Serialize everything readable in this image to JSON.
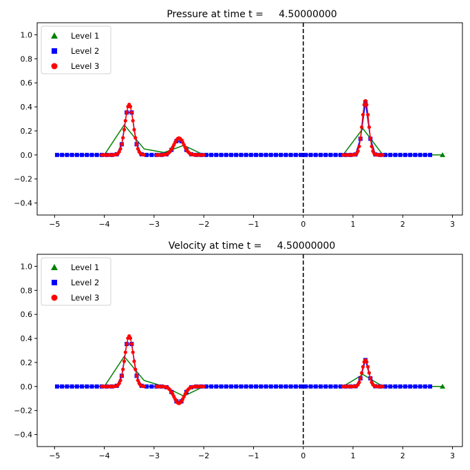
{
  "chart_data": [
    {
      "type": "line",
      "title": "Pressure at time t =     4.50000000",
      "xlim": [
        -5.35,
        3.2
      ],
      "ylim": [
        -0.5,
        1.1
      ],
      "xticks": [
        -5,
        -4,
        -3,
        -2,
        -1,
        0,
        1,
        2,
        3
      ],
      "yticks": [
        -0.4,
        -0.2,
        0.0,
        0.2,
        0.4,
        0.6,
        0.8,
        1.0
      ],
      "xtick_labels": [
        "−5",
        "−4",
        "−3",
        "−2",
        "−1",
        "0",
        "1",
        "2",
        "3"
      ],
      "ytick_labels": [
        "−0.4",
        "−0.2",
        "0.0",
        "0.2",
        "0.4",
        "0.6",
        "0.8",
        "1.0"
      ],
      "vline_x": 0,
      "legend": {
        "location": "top-left",
        "entries": [
          {
            "label": "Level 1",
            "marker": "triangle",
            "color": "#008000"
          },
          {
            "label": "Level 2",
            "marker": "square",
            "color": "#0000ff"
          },
          {
            "label": "Level 3",
            "marker": "circle",
            "color": "#ff0000"
          }
        ]
      },
      "series": [
        {
          "name": "Level 1",
          "color": "#008000",
          "x": [
            -4.0,
            -3.6,
            -3.2,
            -2.8,
            -2.4,
            -2.0,
            0.8,
            1.2,
            1.6,
            2.0,
            2.4,
            2.8
          ],
          "y": [
            0.0,
            0.25,
            0.05,
            0.02,
            0.08,
            0.0,
            0.0,
            0.22,
            0.0,
            0.0,
            0.0,
            0.0
          ]
        },
        {
          "name": "Level 2",
          "color": "#0000ff",
          "x_range": [
            -4.95,
            2.55
          ],
          "dx": 0.1,
          "bumps": [
            {
              "center": -3.5,
              "height": 0.42,
              "width": 0.085
            },
            {
              "center": -2.5,
              "height": 0.13,
              "width": 0.1
            },
            {
              "center": 1.25,
              "height": 0.44,
              "width": 0.065
            }
          ]
        },
        {
          "name": "Level 3",
          "color": "#ff0000",
          "segments": [
            [
              -4.05,
              -3.2
            ],
            [
              -2.95,
              -2.0
            ],
            [
              0.8,
              1.6
            ]
          ],
          "dx": 0.025,
          "bumps": [
            {
              "center": -3.5,
              "height": 0.42,
              "width": 0.085
            },
            {
              "center": -2.5,
              "height": 0.14,
              "width": 0.1
            },
            {
              "center": 1.25,
              "height": 0.45,
              "width": 0.065
            }
          ]
        }
      ]
    },
    {
      "type": "line",
      "title": "Velocity at time t =     4.50000000",
      "xlim": [
        -5.35,
        3.2
      ],
      "ylim": [
        -0.5,
        1.1
      ],
      "xticks": [
        -5,
        -4,
        -3,
        -2,
        -1,
        0,
        1,
        2,
        3
      ],
      "yticks": [
        -0.4,
        -0.2,
        0.0,
        0.2,
        0.4,
        0.6,
        0.8,
        1.0
      ],
      "xtick_labels": [
        "−5",
        "−4",
        "−3",
        "−2",
        "−1",
        "0",
        "1",
        "2",
        "3"
      ],
      "ytick_labels": [
        "−0.4",
        "−0.2",
        "0.0",
        "0.2",
        "0.4",
        "0.6",
        "0.8",
        "1.0"
      ],
      "vline_x": 0,
      "legend": {
        "location": "top-left",
        "entries": [
          {
            "label": "Level 1",
            "marker": "triangle",
            "color": "#008000"
          },
          {
            "label": "Level 2",
            "marker": "square",
            "color": "#0000ff"
          },
          {
            "label": "Level 3",
            "marker": "circle",
            "color": "#ff0000"
          }
        ]
      },
      "series": [
        {
          "name": "Level 1",
          "color": "#008000",
          "x": [
            -4.0,
            -3.6,
            -3.2,
            -2.8,
            -2.4,
            -2.0,
            0.8,
            1.2,
            1.6,
            2.0,
            2.4,
            2.8
          ],
          "y": [
            0.0,
            0.25,
            0.05,
            0.0,
            -0.08,
            0.0,
            0.0,
            0.1,
            0.0,
            0.0,
            0.0,
            0.0
          ]
        },
        {
          "name": "Level 2",
          "color": "#0000ff",
          "x_range": [
            -4.95,
            2.55
          ],
          "dx": 0.1,
          "bumps": [
            {
              "center": -3.5,
              "height": 0.42,
              "width": 0.085
            },
            {
              "center": -2.5,
              "height": -0.14,
              "width": 0.1
            },
            {
              "center": 1.25,
              "height": 0.22,
              "width": 0.065
            }
          ]
        },
        {
          "name": "Level 3",
          "color": "#ff0000",
          "segments": [
            [
              -4.05,
              -3.2
            ],
            [
              -2.95,
              -2.0
            ],
            [
              0.8,
              1.6
            ]
          ],
          "dx": 0.025,
          "bumps": [
            {
              "center": -3.5,
              "height": 0.42,
              "width": 0.085
            },
            {
              "center": -2.5,
              "height": -0.14,
              "width": 0.1
            },
            {
              "center": 1.25,
              "height": 0.22,
              "width": 0.065
            }
          ]
        }
      ]
    }
  ]
}
